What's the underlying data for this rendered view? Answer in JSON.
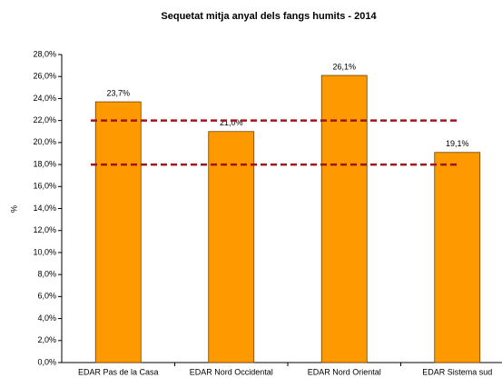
{
  "chart_data": {
    "type": "bar",
    "title": "Sequetat mitja anyal dels fangs humits - 2014",
    "y_label": "%",
    "categories": [
      "EDAR Pas de la Casa",
      "EDAR Nord Occidental",
      "EDAR Nord Oriental",
      "EDAR Sistema sud"
    ],
    "values": [
      23.7,
      21.0,
      26.1,
      19.1
    ],
    "value_labels": [
      "23,7%",
      "21,0%",
      "26,1%",
      "19,1%"
    ],
    "color": "#ff9900",
    "reference_lines": [
      22,
      18
    ],
    "reference_color": "#a0141c",
    "ylim": [
      0,
      28
    ],
    "yticks": [
      {
        "value": 0,
        "label": "0,0%"
      },
      {
        "value": 2,
        "label": "2,0%"
      },
      {
        "value": 4,
        "label": "4,0%"
      },
      {
        "value": 6,
        "label": "6,0%"
      },
      {
        "value": 8,
        "label": "8,0%"
      },
      {
        "value": 10,
        "label": "10,0%"
      },
      {
        "value": 12,
        "label": "12,0%"
      },
      {
        "value": 14,
        "label": "14,0%"
      },
      {
        "value": 16,
        "label": "16,0%"
      },
      {
        "value": 18,
        "label": "18,0%"
      },
      {
        "value": 20,
        "label": "20,0%"
      },
      {
        "value": 22,
        "label": "22,0%"
      },
      {
        "value": 24,
        "label": "24,0%"
      },
      {
        "value": 26,
        "label": "26,0%"
      },
      {
        "value": 28,
        "label": "28,0%"
      }
    ],
    "grid": false
  }
}
